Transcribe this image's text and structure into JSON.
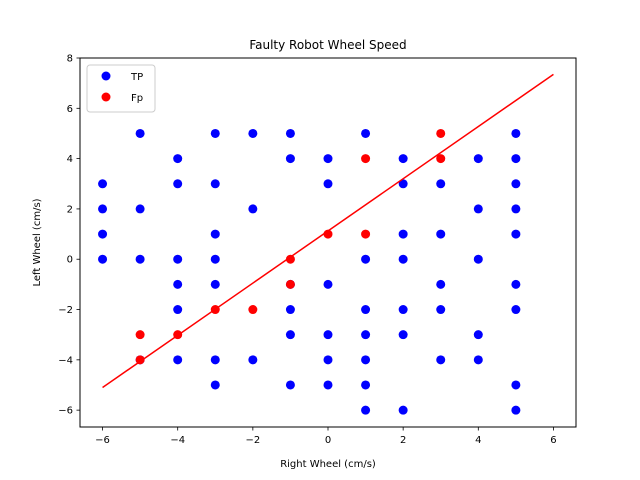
{
  "chart_data": {
    "type": "scatter",
    "title": "Faulty Robot Wheel Speed",
    "xlabel": "Right Wheel (cm/s)",
    "ylabel": "Left Wheel (cm/s)",
    "xlim": [
      -6.6,
      6.6
    ],
    "ylim": [
      -6.67,
      8.0
    ],
    "xticks": [
      -6,
      -4,
      -2,
      0,
      2,
      4,
      6
    ],
    "yticks": [
      -6,
      -4,
      -2,
      0,
      2,
      4,
      6,
      8
    ],
    "grid": false,
    "legend_position": "top-left",
    "series": [
      {
        "name": "TP",
        "color": "#0000ff",
        "marker": "circle",
        "points": [
          [
            -6,
            3
          ],
          [
            -6,
            2
          ],
          [
            -6,
            1
          ],
          [
            -6,
            0
          ],
          [
            -5,
            5
          ],
          [
            -5,
            2
          ],
          [
            -5,
            0
          ],
          [
            -5,
            -4
          ],
          [
            -4,
            4
          ],
          [
            -4,
            3
          ],
          [
            -4,
            0
          ],
          [
            -4,
            -1
          ],
          [
            -4,
            -2
          ],
          [
            -4,
            -4
          ],
          [
            -3,
            5
          ],
          [
            -3,
            3
          ],
          [
            -3,
            1
          ],
          [
            -3,
            0
          ],
          [
            -3,
            -1
          ],
          [
            -3,
            -4
          ],
          [
            -3,
            -5
          ],
          [
            -2,
            5
          ],
          [
            -2,
            2
          ],
          [
            -2,
            -4
          ],
          [
            -1,
            5
          ],
          [
            -1,
            4
          ],
          [
            -1,
            -1
          ],
          [
            -1,
            -2
          ],
          [
            -1,
            -3
          ],
          [
            -1,
            -5
          ],
          [
            0,
            4
          ],
          [
            0,
            3
          ],
          [
            0,
            -1
          ],
          [
            0,
            -3
          ],
          [
            0,
            -4
          ],
          [
            0,
            -5
          ],
          [
            1,
            5
          ],
          [
            1,
            0
          ],
          [
            1,
            -2
          ],
          [
            1,
            -3
          ],
          [
            1,
            -4
          ],
          [
            1,
            -5
          ],
          [
            1,
            -6
          ],
          [
            2,
            4
          ],
          [
            2,
            3
          ],
          [
            2,
            1
          ],
          [
            2,
            0
          ],
          [
            2,
            -2
          ],
          [
            2,
            -3
          ],
          [
            2,
            -6
          ],
          [
            3,
            3
          ],
          [
            3,
            1
          ],
          [
            3,
            -1
          ],
          [
            3,
            -2
          ],
          [
            3,
            -4
          ],
          [
            4,
            4
          ],
          [
            4,
            2
          ],
          [
            4,
            0
          ],
          [
            4,
            -3
          ],
          [
            4,
            -4
          ],
          [
            5,
            5
          ],
          [
            5,
            4
          ],
          [
            5,
            3
          ],
          [
            5,
            2
          ],
          [
            5,
            1
          ],
          [
            5,
            -1
          ],
          [
            5,
            -2
          ],
          [
            5,
            -5
          ],
          [
            5,
            -6
          ]
        ]
      },
      {
        "name": "Fp",
        "color": "#ff0000",
        "marker": "circle",
        "points": [
          [
            -5,
            -3
          ],
          [
            -5,
            -4
          ],
          [
            -4,
            -3
          ],
          [
            -3,
            -2
          ],
          [
            -2,
            -2
          ],
          [
            -1,
            0
          ],
          [
            -1,
            -1
          ],
          [
            0,
            1
          ],
          [
            1,
            4
          ],
          [
            1,
            1
          ],
          [
            3,
            5
          ],
          [
            3,
            4
          ]
        ]
      }
    ],
    "line": {
      "color": "#ff0000",
      "x": [
        -6,
        6
      ],
      "y": [
        -5.1,
        7.35
      ]
    }
  }
}
